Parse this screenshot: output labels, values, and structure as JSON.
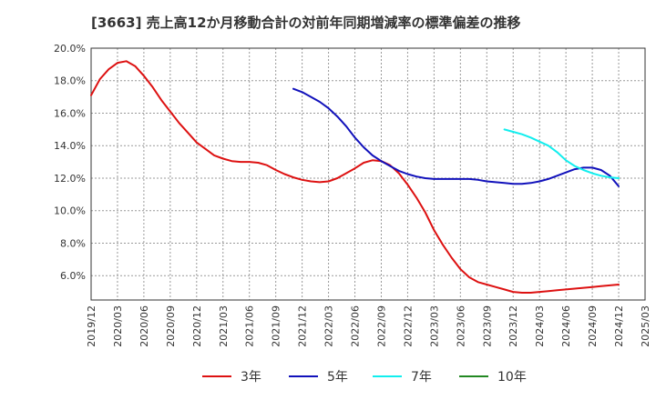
{
  "chart_data": {
    "type": "line",
    "title": "[3663]  売上高12か月移動合計の対前年同期増減率の標準偏差の推移",
    "xlabel": "",
    "ylabel": "",
    "ylim": [
      4.5,
      20.0
    ],
    "y_ticks": [
      6.0,
      8.0,
      10.0,
      12.0,
      14.0,
      16.0,
      18.0,
      20.0
    ],
    "y_tick_labels": [
      "6.0%",
      "8.0%",
      "10.0%",
      "12.0%",
      "14.0%",
      "16.0%",
      "18.0%",
      "20.0%"
    ],
    "x_tick_labels": [
      "2019/12",
      "2020/03",
      "2020/06",
      "2020/09",
      "2020/12",
      "2021/03",
      "2021/06",
      "2021/09",
      "2021/12",
      "2022/03",
      "2022/06",
      "2022/09",
      "2022/12",
      "2023/03",
      "2023/06",
      "2023/09",
      "2023/12",
      "2024/03",
      "2024/06",
      "2024/09",
      "2024/12",
      "2025/03"
    ],
    "grid": true,
    "legend_position": "bottom",
    "series": [
      {
        "name": "3年",
        "color": "#dd1111",
        "x": [
          "2019/12",
          "2020/01",
          "2020/02",
          "2020/03",
          "2020/04",
          "2020/05",
          "2020/06",
          "2020/07",
          "2020/08",
          "2020/09",
          "2020/10",
          "2020/11",
          "2020/12",
          "2021/01",
          "2021/02",
          "2021/03",
          "2021/04",
          "2021/05",
          "2021/06",
          "2021/07",
          "2021/08",
          "2021/09",
          "2021/10",
          "2021/11",
          "2021/12",
          "2022/01",
          "2022/02",
          "2022/03",
          "2022/04",
          "2022/05",
          "2022/06",
          "2022/07",
          "2022/08",
          "2022/09",
          "2022/10",
          "2022/11",
          "2022/12",
          "2023/01",
          "2023/02",
          "2023/03",
          "2023/04",
          "2023/05",
          "2023/06",
          "2023/07",
          "2023/08",
          "2023/09",
          "2023/10",
          "2023/11",
          "2023/12",
          "2024/01",
          "2024/02",
          "2024/03",
          "2024/04",
          "2024/05",
          "2024/06",
          "2024/07",
          "2024/08",
          "2024/09",
          "2024/10",
          "2024/11",
          "2024/12"
        ],
        "values": [
          17.1,
          18.1,
          18.7,
          19.1,
          19.2,
          18.9,
          18.3,
          17.6,
          16.8,
          16.1,
          15.4,
          14.8,
          14.2,
          13.8,
          13.4,
          13.2,
          13.05,
          13.0,
          13.0,
          12.95,
          12.8,
          12.5,
          12.25,
          12.05,
          11.9,
          11.8,
          11.75,
          11.8,
          12.0,
          12.3,
          12.6,
          12.95,
          13.1,
          13.05,
          12.8,
          12.3,
          11.6,
          10.8,
          9.9,
          8.8,
          7.9,
          7.1,
          6.4,
          5.9,
          5.6,
          5.45,
          5.3,
          5.15,
          5.0,
          4.95,
          4.95,
          5.0,
          5.05,
          5.1,
          5.15,
          5.2,
          5.25,
          5.3,
          5.35,
          5.4,
          5.45
        ]
      },
      {
        "name": "5年",
        "color": "#1111bb",
        "x": [
          "2021/11",
          "2021/12",
          "2022/01",
          "2022/02",
          "2022/03",
          "2022/04",
          "2022/05",
          "2022/06",
          "2022/07",
          "2022/08",
          "2022/09",
          "2022/10",
          "2022/11",
          "2022/12",
          "2023/01",
          "2023/02",
          "2023/03",
          "2023/04",
          "2023/05",
          "2023/06",
          "2023/07",
          "2023/08",
          "2023/09",
          "2023/10",
          "2023/11",
          "2023/12",
          "2024/01",
          "2024/02",
          "2024/03",
          "2024/04",
          "2024/05",
          "2024/06",
          "2024/07",
          "2024/08",
          "2024/09",
          "2024/10",
          "2024/11",
          "2024/12"
        ],
        "values": [
          17.5,
          17.3,
          17.0,
          16.7,
          16.3,
          15.8,
          15.2,
          14.5,
          13.9,
          13.4,
          13.05,
          12.75,
          12.45,
          12.25,
          12.1,
          12.0,
          11.95,
          11.95,
          11.95,
          11.95,
          11.95,
          11.9,
          11.8,
          11.75,
          11.7,
          11.65,
          11.65,
          11.7,
          11.8,
          11.95,
          12.15,
          12.35,
          12.55,
          12.65,
          12.65,
          12.5,
          12.15,
          11.5
        ]
      },
      {
        "name": "7年",
        "color": "#11eeee",
        "x": [
          "2023/11",
          "2023/12",
          "2024/01",
          "2024/02",
          "2024/03",
          "2024/04",
          "2024/05",
          "2024/06",
          "2024/07",
          "2024/08",
          "2024/09",
          "2024/10",
          "2024/11",
          "2024/12"
        ],
        "values": [
          15.0,
          14.85,
          14.7,
          14.5,
          14.25,
          14.0,
          13.6,
          13.1,
          12.75,
          12.5,
          12.3,
          12.15,
          12.05,
          12.0
        ]
      },
      {
        "name": "10年",
        "color": "#228822",
        "x": [],
        "values": []
      }
    ]
  }
}
